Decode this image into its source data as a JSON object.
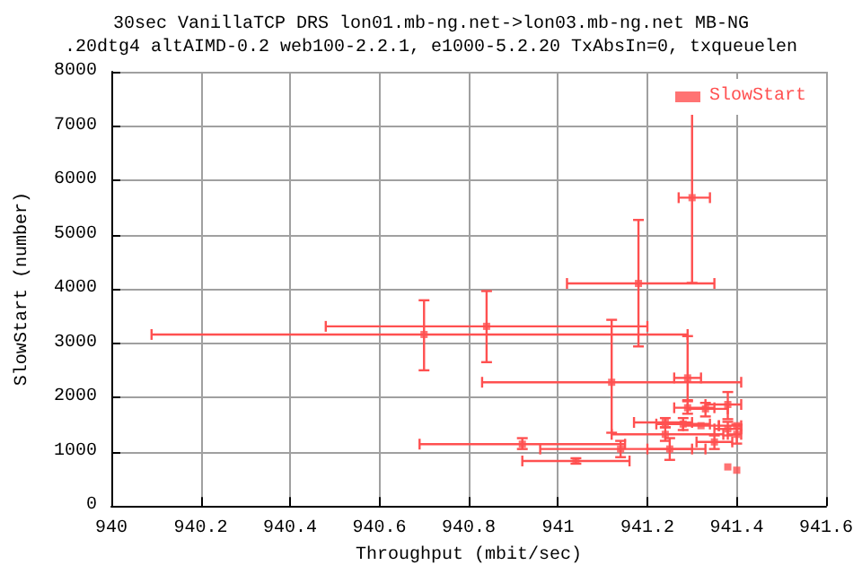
{
  "chart_data": {
    "type": "scatter",
    "title": "30sec VanillaTCP DRS lon01.mb-ng.net->lon03.mb-ng.net MB-NG",
    "subtitle": ".20dtg4 altAIMD-0.2 web100-2.2.1, e1000-5.2.20 TxAbsIn=0, txqueuelen",
    "xlabel": "Throughput (mbit/sec)",
    "ylabel": "SlowStart (number)",
    "series": [
      {
        "name": "SlowStart",
        "color": "#ff5050",
        "x": [
          940.7,
          940.84,
          941.3,
          941.18,
          941.12,
          941.29,
          940.92,
          941.04,
          941.14,
          941.24,
          941.24,
          941.25,
          941.28,
          941.32,
          941.33,
          941.38,
          941.29,
          941.38,
          941.4,
          941.4,
          941.35,
          941.38,
          941.4
        ],
        "values": [
          3160,
          3310,
          5680,
          4100,
          2280,
          2360,
          1140,
          830,
          1050,
          1320,
          1540,
          1050,
          1510,
          1480,
          1790,
          1870,
          1810,
          1420,
          1320,
          1480,
          1180,
          720,
          660
        ],
        "errors": [
          [
            2500,
            3790
          ],
          [
            2650,
            3960
          ],
          [
            4110,
            7290
          ],
          [
            2940,
            5270
          ],
          [
            1350,
            3430
          ],
          [
            1930,
            3130
          ],
          [
            1050,
            1250
          ],
          [
            780,
            880
          ],
          [
            900,
            1200
          ],
          [
            1200,
            1450
          ],
          [
            1450,
            1620
          ],
          [
            850,
            1250
          ],
          [
            1400,
            1620
          ],
          null,
          [
            1650,
            1900
          ],
          [
            1600,
            2100
          ],
          [
            1700,
            1950
          ],
          [
            1300,
            1550
          ],
          [
            1150,
            1500
          ],
          null,
          [
            1050,
            1300
          ],
          null,
          null
        ],
        "xerrors": [
          [
            940.09,
            941.29
          ],
          [
            940.48,
            941.2
          ],
          [
            941.27,
            941.34
          ],
          [
            941.02,
            941.35
          ],
          [
            940.83,
            941.41
          ],
          [
            941.26,
            941.32
          ],
          [
            940.69,
            941.15
          ],
          [
            940.92,
            941.16
          ],
          [
            940.96,
            941.33
          ],
          [
            941.12,
            941.37
          ],
          [
            941.17,
            941.3
          ],
          [
            941.2,
            941.3
          ],
          [
            941.22,
            941.34
          ],
          [
            941.28,
            941.36
          ],
          [
            941.29,
            941.38
          ],
          [
            941.33,
            941.41
          ],
          [
            941.26,
            941.35
          ],
          [
            941.35,
            941.41
          ],
          [
            941.38,
            941.41
          ],
          [
            941.36,
            941.41
          ],
          [
            941.31,
            941.39
          ],
          null,
          null
        ]
      }
    ],
    "xlim": [
      940,
      941.6
    ],
    "xticks": [
      940,
      940.2,
      940.4,
      940.6,
      940.8,
      941,
      941.2,
      941.4,
      941.6
    ],
    "ylim": [
      0,
      8000
    ],
    "yticks": [
      0,
      1000,
      2000,
      3000,
      4000,
      5000,
      6000,
      7000,
      8000
    ],
    "grid": true,
    "legend": "top right",
    "marker": "square"
  }
}
